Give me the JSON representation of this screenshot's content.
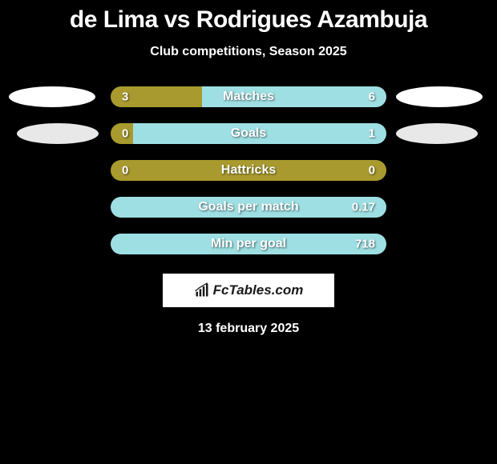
{
  "header": {
    "title": "de Lima vs Rodrigues Azambuja",
    "subtitle": "Club competitions, Season 2025"
  },
  "colors": {
    "left": "#a89a2e",
    "right": "#9edfe3",
    "background": "#000000"
  },
  "stats": [
    {
      "label": "Matches",
      "left_value": "3",
      "right_value": "6",
      "left_pct": 33,
      "right_pct": 67,
      "left_color": "#a89a2e",
      "right_color": "#9edfe3"
    },
    {
      "label": "Goals",
      "left_value": "0",
      "right_value": "1",
      "left_pct": 8,
      "right_pct": 92,
      "left_color": "#a89a2e",
      "right_color": "#9edfe3"
    },
    {
      "label": "Hattricks",
      "left_value": "0",
      "right_value": "0",
      "left_pct": 100,
      "right_pct": 0,
      "left_color": "#a89a2e",
      "right_color": "#9edfe3"
    },
    {
      "label": "Goals per match",
      "left_value": "",
      "right_value": "0.17",
      "left_pct": 0,
      "right_pct": 100,
      "left_color": "#a89a2e",
      "right_color": "#9edfe3"
    },
    {
      "label": "Min per goal",
      "left_value": "",
      "right_value": "718",
      "left_pct": 0,
      "right_pct": 100,
      "left_color": "#a89a2e",
      "right_color": "#9edfe3"
    }
  ],
  "footer": {
    "logo_text": "FcTables.com",
    "date": "13 february 2025"
  }
}
